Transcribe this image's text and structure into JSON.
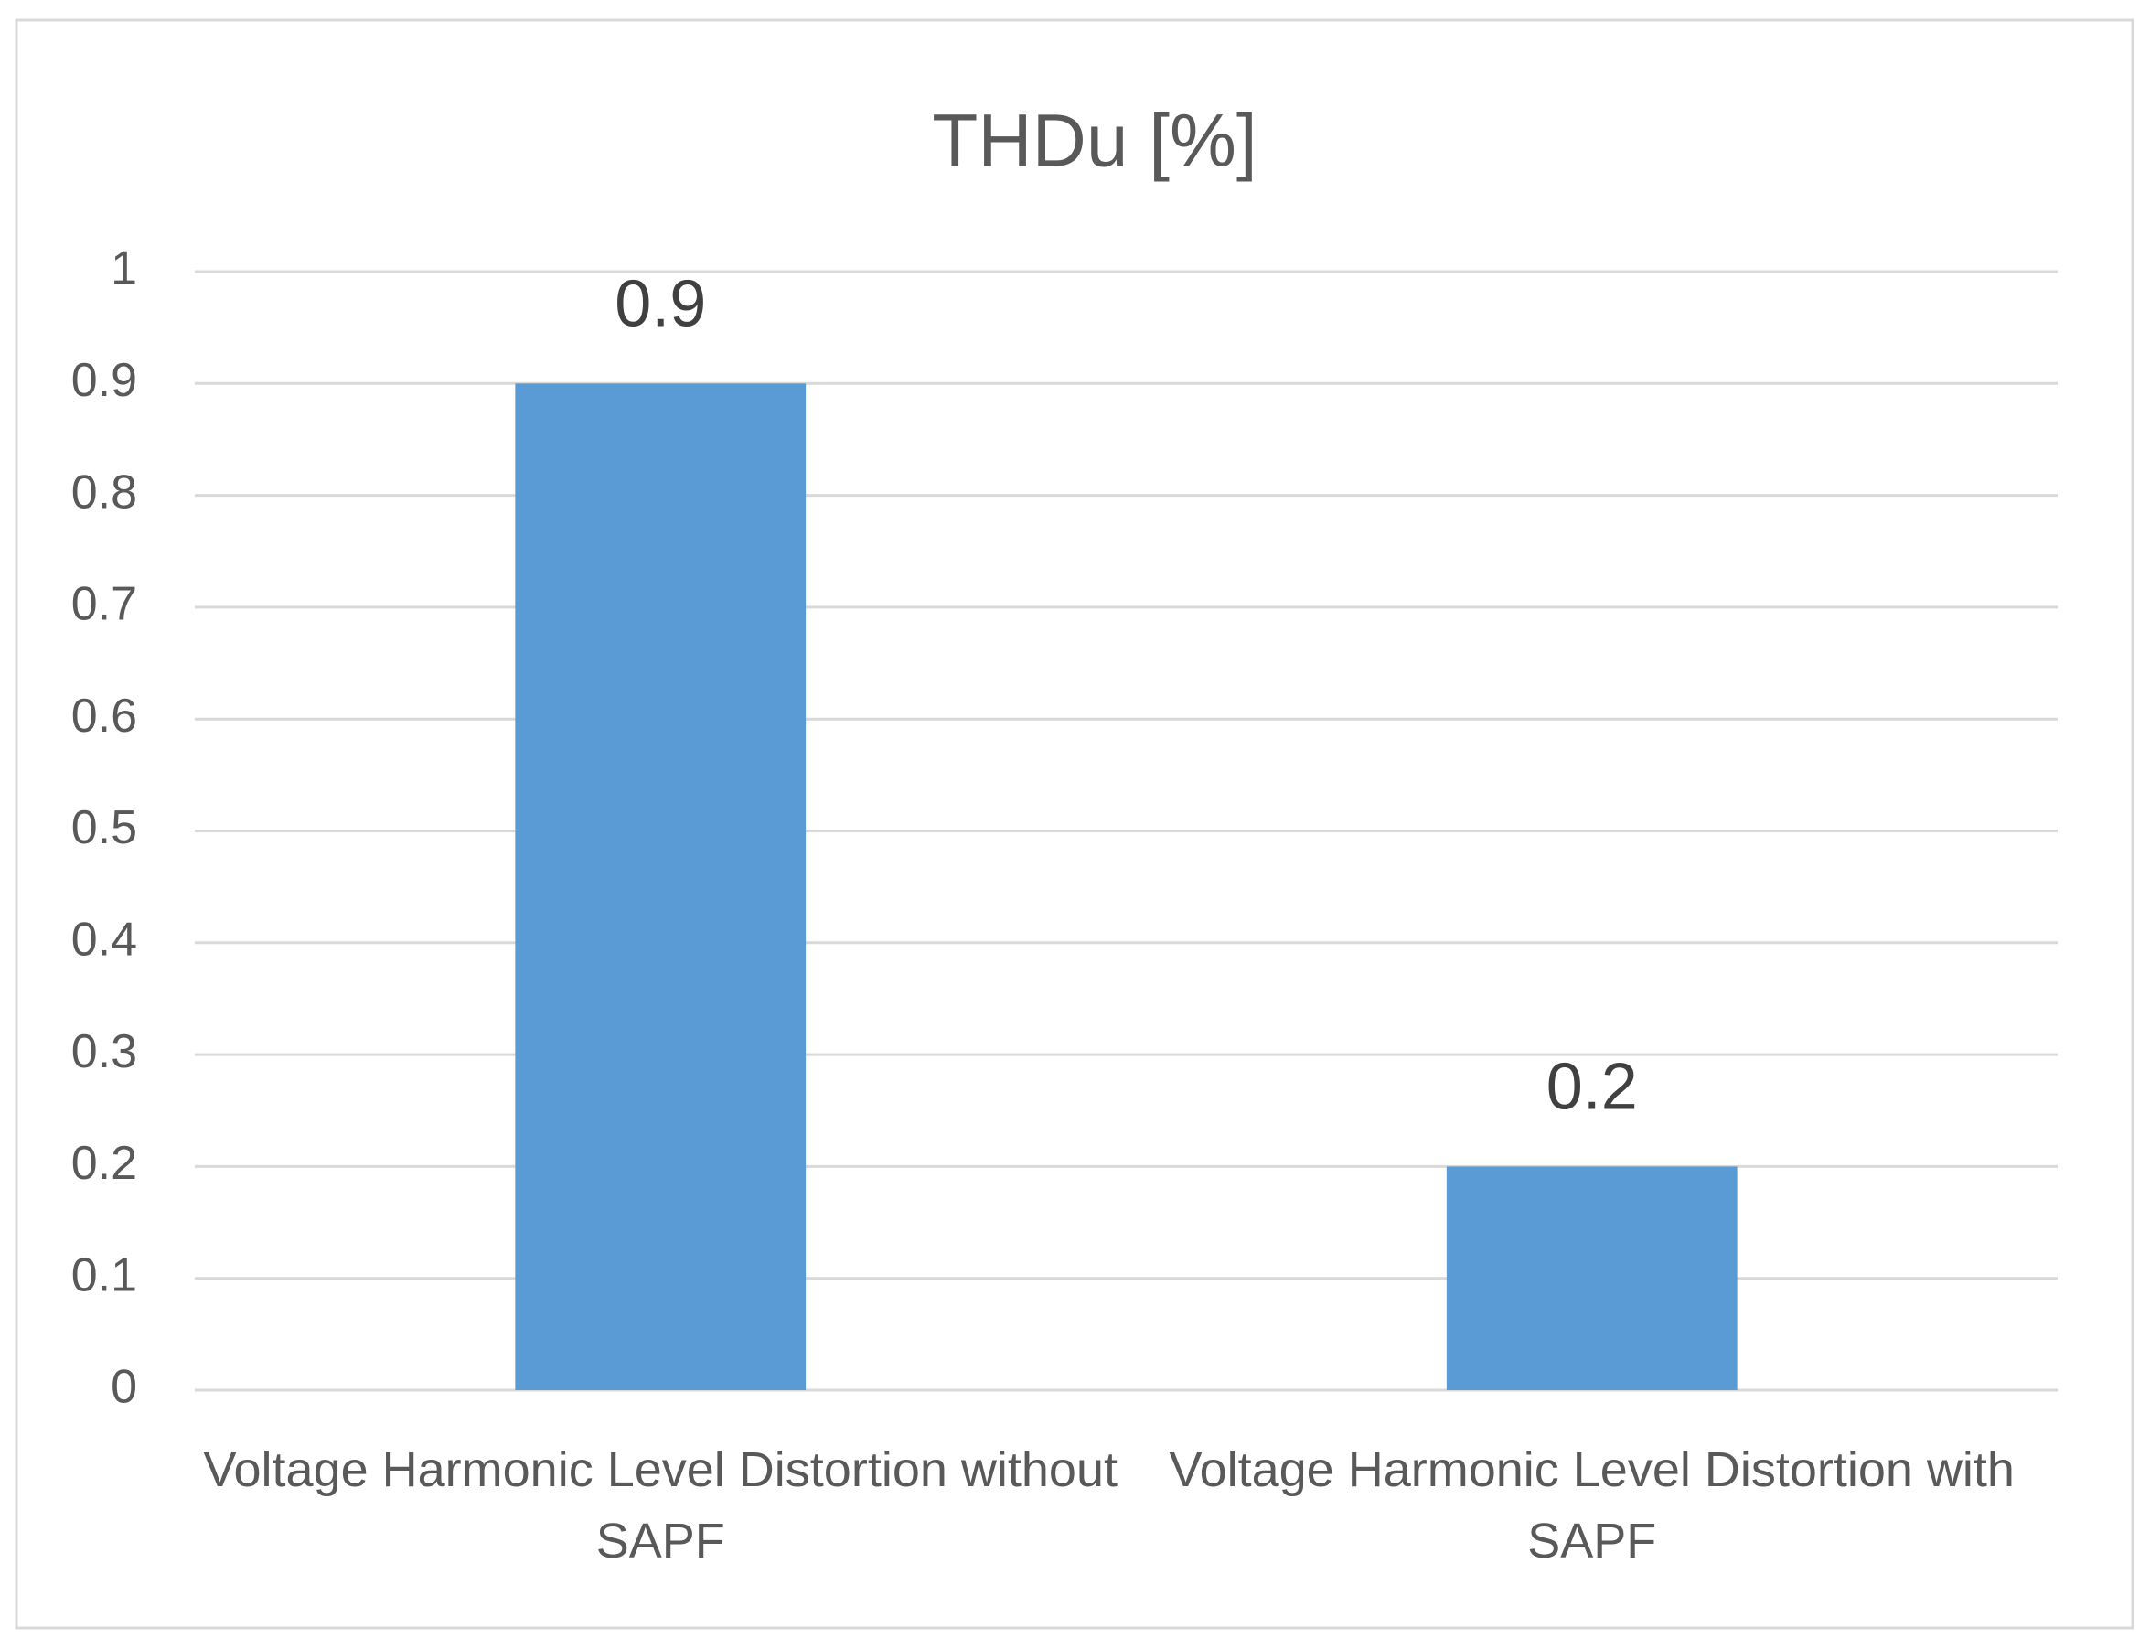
{
  "chart_data": {
    "type": "bar",
    "title": "THDu [%]",
    "categories": [
      "Voltage Harmonic Level Distortion without SAPF",
      "Voltage Harmonic Level Distortion with SAPF"
    ],
    "values": [
      0.9,
      0.2
    ],
    "color": "#5b9bd5",
    "ylim": [
      0,
      1
    ],
    "yticks": [
      0,
      0.1,
      0.2,
      0.3,
      0.4,
      0.5,
      0.6,
      0.7,
      0.8,
      0.9,
      1
    ],
    "grid": true
  }
}
